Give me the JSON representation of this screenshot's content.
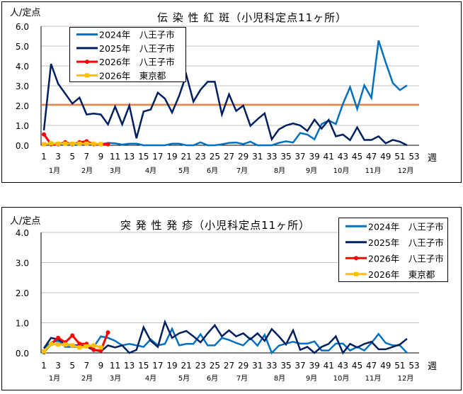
{
  "chart_data": [
    {
      "type": "line",
      "title": "伝 染 性 紅 斑（小児科定点11ヶ所）",
      "ylabel": "人/定点",
      "xlabel": "週",
      "ylim": [
        0,
        6
      ],
      "yticks": [
        "0.0",
        "1.0",
        "2.0",
        "3.0",
        "4.0",
        "5.0",
        "6.0"
      ],
      "xticks": [
        "1",
        "3",
        "5",
        "7",
        "9",
        "11",
        "13",
        "15",
        "17",
        "19",
        "21",
        "23",
        "25",
        "27",
        "29",
        "31",
        "33",
        "35",
        "37",
        "39",
        "41",
        "43",
        "45",
        "47",
        "49",
        "51",
        "53"
      ],
      "months": [
        "1月",
        "2月",
        "3月",
        "4月",
        "5月",
        "6月",
        "7月",
        "8月",
        "9月",
        "10月",
        "11月",
        "12月"
      ],
      "grid": true,
      "legend_position": "top-left",
      "reference_line": {
        "value": 2.05,
        "color": "#ED7D31"
      },
      "series": [
        {
          "name": "2024年　八王子市",
          "color": "#0070C0",
          "marker": "none",
          "values": [
            0.05,
            0.05,
            0.05,
            0.05,
            0.05,
            0.05,
            0.05,
            0.05,
            0.05,
            0.12,
            0.1,
            0.03,
            0.08,
            0.08,
            0,
            0,
            0,
            0,
            0.08,
            0.08,
            0,
            0,
            0.15,
            0,
            0,
            0.05,
            0.12,
            0.14,
            0.06,
            0.18,
            0,
            0,
            0,
            0.12,
            0.2,
            0.14,
            0.62,
            0.54,
            0.3,
            1.07,
            1.25,
            1.07,
            2.09,
            2.93,
            1.83,
            3.02,
            2.39,
            5.28,
            4.18,
            3.14,
            2.78,
            3.02
          ]
        },
        {
          "name": "2025年　八王子市",
          "color": "#002060",
          "marker": "none",
          "values": [
            0.75,
            4.1,
            3.1,
            2.6,
            2.1,
            2.4,
            1.55,
            1.6,
            1.55,
            1.05,
            1.95,
            1.05,
            2.0,
            0.35,
            1.7,
            1.8,
            2.65,
            2.35,
            1.65,
            2.5,
            3.55,
            2.2,
            2.8,
            3.2,
            3.2,
            1.55,
            2.57,
            1.73,
            2.0,
            0.98,
            1.31,
            1.61,
            0.3,
            0.8,
            1.0,
            1.1,
            1.0,
            0.72,
            1.29,
            0.84,
            1.28,
            0.45,
            0.54,
            0.26,
            0.9,
            0.27,
            0.27,
            0.45,
            0.1,
            0.27,
            0.18,
            0.0
          ]
        },
        {
          "name": "2026年　八王子市",
          "color": "#FF0000",
          "marker": "circle",
          "values": [
            0.55,
            0.05,
            0.05,
            0.15,
            0.05,
            0.15,
            0.2,
            0.05,
            0.05,
            0.05
          ]
        },
        {
          "name": "2026年　東京都",
          "color": "#FFC000",
          "marker": "square",
          "values": [
            0.05,
            0.1,
            0.08,
            0.08,
            0.08,
            0.08,
            0.08,
            0.08,
            0.06
          ]
        }
      ]
    },
    {
      "type": "line",
      "title": "突 発 性 発 疹（小児科定点11ヶ所）",
      "ylabel": "人/定点",
      "xlabel": "週",
      "ylim": [
        0,
        4
      ],
      "yticks": [
        "0.0",
        "1.0",
        "2.0",
        "3.0",
        "4.0"
      ],
      "xticks": [
        "1",
        "3",
        "5",
        "7",
        "9",
        "11",
        "13",
        "15",
        "17",
        "19",
        "21",
        "23",
        "25",
        "27",
        "29",
        "31",
        "33",
        "35",
        "37",
        "39",
        "41",
        "43",
        "45",
        "47",
        "49",
        "51",
        "53"
      ],
      "months": [
        "1月",
        "2月",
        "3月",
        "4月",
        "5月",
        "6月",
        "7月",
        "8月",
        "9月",
        "10月",
        "11月",
        "12月"
      ],
      "grid": true,
      "legend_position": "top-right",
      "series": [
        {
          "name": "2024年　八王子市",
          "color": "#0070C0",
          "marker": "none",
          "values": [
            0.15,
            0.35,
            0.4,
            0.2,
            0.2,
            0.2,
            0.2,
            0.2,
            0.55,
            0.5,
            0.4,
            0.25,
            0.3,
            0.25,
            0.2,
            0.45,
            0.25,
            0.3,
            0.8,
            0.25,
            0.3,
            0.3,
            0.62,
            0.25,
            0.25,
            0.5,
            0.43,
            0.33,
            0.25,
            0.49,
            0.24,
            0.6,
            0,
            0.24,
            0.31,
            0.37,
            0.31,
            0.31,
            0.38,
            0.08,
            0.08,
            0.31,
            0.31,
            0.08,
            0.2,
            0.08,
            0.33,
            0.63,
            0.33,
            0.25,
            0.25,
            0
          ]
        },
        {
          "name": "2025年　八王子市",
          "color": "#002060",
          "marker": "none",
          "values": [
            0.15,
            0.5,
            0.45,
            0.3,
            0.25,
            0.25,
            0.2,
            0.1,
            0.05,
            0.25,
            0.18,
            0.25,
            0.0,
            0.1,
            0.85,
            0.4,
            0.2,
            1.03,
            0.5,
            0.65,
            0.73,
            0.55,
            0.35,
            0.65,
            0.92,
            0.55,
            0.75,
            0.55,
            0.65,
            0.45,
            0.65,
            0.4,
            0.79,
            0.55,
            0.28,
            0.75,
            0.1,
            0.2,
            0,
            0.2,
            0.3,
            0.55,
            0,
            0.3,
            0.18,
            0.3,
            0.37,
            0.12,
            0.12,
            0.2,
            0.28,
            0.47
          ]
        },
        {
          "name": "2026年　八王子市",
          "color": "#FF0000",
          "marker": "circle",
          "values": [
            0.02,
            0.3,
            0.5,
            0.35,
            0.58,
            0.3,
            0.3,
            0.1,
            0.08,
            0.68
          ]
        },
        {
          "name": "2026年　東京都",
          "color": "#FFC000",
          "marker": "square",
          "values": [
            0.05,
            0.3,
            0.28,
            0.28,
            0.25,
            0.18,
            0.22,
            0.25,
            0.18
          ]
        }
      ]
    }
  ]
}
